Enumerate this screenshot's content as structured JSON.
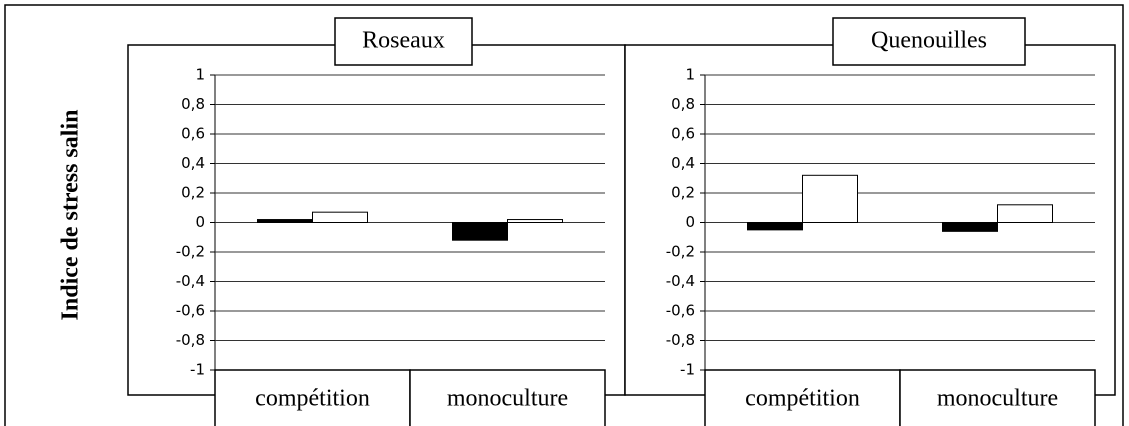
{
  "chart_data": [
    {
      "type": "bar",
      "title": "Roseaux",
      "ylabel": "Indice de stress salin",
      "categories": [
        "compétition",
        "monoculture"
      ],
      "series": [
        {
          "color": "#000000",
          "values": [
            0.02,
            -0.12
          ]
        },
        {
          "color": "#ffffff",
          "values": [
            0.07,
            0.02
          ]
        }
      ],
      "ylim": [
        -1,
        1
      ],
      "yticks": [
        1,
        {
          "value": 0.8,
          "label": "0,8"
        },
        {
          "value": 0.6,
          "label": "0,6"
        },
        {
          "value": 0.4,
          "label": "0,4"
        },
        {
          "value": 0.2,
          "label": "0,2"
        },
        0,
        {
          "value": -0.2,
          "label": "-0,2"
        },
        {
          "value": -0.4,
          "label": "-0,4"
        },
        {
          "value": -0.6,
          "label": "-0,6"
        },
        {
          "value": -0.8,
          "label": "-0,8"
        },
        -1
      ],
      "grid": true
    },
    {
      "type": "bar",
      "title": "Quenouilles",
      "categories": [
        "compétition",
        "monoculture"
      ],
      "series": [
        {
          "color": "#000000",
          "values": [
            -0.05,
            -0.06
          ]
        },
        {
          "color": "#ffffff",
          "values": [
            0.32,
            0.12
          ]
        }
      ],
      "ylim": [
        -1,
        1
      ],
      "yticks": [
        1,
        {
          "value": 0.8,
          "label": "0,8"
        },
        {
          "value": 0.6,
          "label": "0,6"
        },
        {
          "value": 0.4,
          "label": "0,4"
        },
        {
          "value": 0.2,
          "label": "0,2"
        },
        0,
        {
          "value": -0.2,
          "label": "-0,2"
        },
        {
          "value": -0.4,
          "label": "-0,4"
        },
        {
          "value": -0.6,
          "label": "-0,6"
        },
        {
          "value": -0.8,
          "label": "-0,8"
        },
        -1
      ],
      "grid": true
    }
  ]
}
